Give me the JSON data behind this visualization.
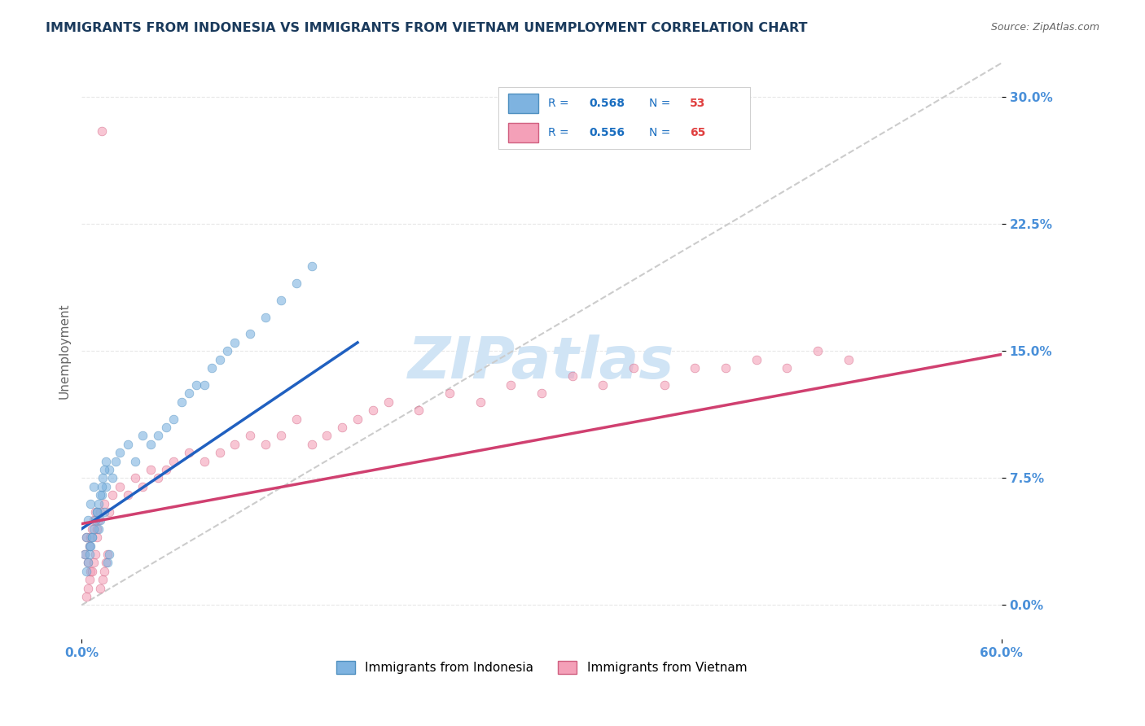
{
  "title": "IMMIGRANTS FROM INDONESIA VS IMMIGRANTS FROM VIETNAM UNEMPLOYMENT CORRELATION CHART",
  "source_text": "Source: ZipAtlas.com",
  "xlabel": "",
  "ylabel": "Unemployment",
  "xlim": [
    0.0,
    0.6
  ],
  "ylim": [
    -0.02,
    0.32
  ],
  "xticks": [
    0.0,
    0.1,
    0.2,
    0.3,
    0.4,
    0.5,
    0.6
  ],
  "xticklabels": [
    "0.0%",
    "",
    "",
    "",
    "",
    "",
    "60.0%"
  ],
  "ytick_positions": [
    0.0,
    0.075,
    0.15,
    0.225,
    0.3
  ],
  "yticklabels": [
    "0.0%",
    "7.5%",
    "15.0%",
    "22.5%",
    "30.0%"
  ],
  "title_color": "#1a3a5c",
  "title_fontsize": 11.5,
  "axis_color": "#4a90d9",
  "watermark_text": "ZIPatlas",
  "watermark_color": "#d0e4f5",
  "watermark_fontsize": 52,
  "legend_labels": [
    "  R = 0.568   N = 53",
    "  R = 0.556   N = 65"
  ],
  "legend_colors_face": [
    "#aec6e8",
    "#f7b6c8"
  ],
  "legend_colors_edge": [
    "#aec6e8",
    "#f7b6c8"
  ],
  "series_indonesia": {
    "x": [
      0.002,
      0.003,
      0.004,
      0.005,
      0.006,
      0.007,
      0.008,
      0.01,
      0.011,
      0.012,
      0.013,
      0.015,
      0.016,
      0.018,
      0.02,
      0.022,
      0.025,
      0.03,
      0.035,
      0.04,
      0.045,
      0.05,
      0.055,
      0.06,
      0.065,
      0.07,
      0.075,
      0.08,
      0.085,
      0.09,
      0.095,
      0.1,
      0.11,
      0.12,
      0.13,
      0.14,
      0.15,
      0.003,
      0.004,
      0.005,
      0.006,
      0.007,
      0.008,
      0.009,
      0.01,
      0.011,
      0.012,
      0.013,
      0.014,
      0.015,
      0.016,
      0.017,
      0.018
    ],
    "y": [
      0.03,
      0.04,
      0.05,
      0.035,
      0.06,
      0.04,
      0.07,
      0.055,
      0.045,
      0.05,
      0.065,
      0.055,
      0.07,
      0.08,
      0.075,
      0.085,
      0.09,
      0.095,
      0.085,
      0.1,
      0.095,
      0.1,
      0.105,
      0.11,
      0.12,
      0.125,
      0.13,
      0.13,
      0.14,
      0.145,
      0.15,
      0.155,
      0.16,
      0.17,
      0.18,
      0.19,
      0.2,
      0.02,
      0.025,
      0.03,
      0.035,
      0.04,
      0.045,
      0.05,
      0.055,
      0.06,
      0.065,
      0.07,
      0.075,
      0.08,
      0.085,
      0.025,
      0.03
    ],
    "color": "#7eb3e0",
    "edge_color": "#5090c0",
    "size": 60,
    "alpha": 0.6
  },
  "series_vietnam": {
    "x": [
      0.002,
      0.003,
      0.004,
      0.005,
      0.006,
      0.007,
      0.008,
      0.009,
      0.01,
      0.012,
      0.015,
      0.018,
      0.02,
      0.025,
      0.03,
      0.035,
      0.04,
      0.045,
      0.05,
      0.055,
      0.06,
      0.07,
      0.08,
      0.09,
      0.1,
      0.11,
      0.12,
      0.13,
      0.14,
      0.15,
      0.16,
      0.17,
      0.18,
      0.19,
      0.2,
      0.22,
      0.24,
      0.26,
      0.28,
      0.3,
      0.32,
      0.34,
      0.36,
      0.38,
      0.4,
      0.42,
      0.44,
      0.46,
      0.48,
      0.5,
      0.003,
      0.004,
      0.005,
      0.006,
      0.007,
      0.008,
      0.009,
      0.01,
      0.011,
      0.012,
      0.013,
      0.014,
      0.015,
      0.016,
      0.017
    ],
    "y": [
      0.03,
      0.04,
      0.025,
      0.035,
      0.04,
      0.045,
      0.05,
      0.055,
      0.045,
      0.055,
      0.06,
      0.055,
      0.065,
      0.07,
      0.065,
      0.075,
      0.07,
      0.08,
      0.075,
      0.08,
      0.085,
      0.09,
      0.085,
      0.09,
      0.095,
      0.1,
      0.095,
      0.1,
      0.11,
      0.095,
      0.1,
      0.105,
      0.11,
      0.115,
      0.12,
      0.115,
      0.125,
      0.12,
      0.13,
      0.125,
      0.135,
      0.13,
      0.14,
      0.13,
      0.14,
      0.14,
      0.145,
      0.14,
      0.15,
      0.145,
      0.005,
      0.01,
      0.015,
      0.02,
      0.02,
      0.025,
      0.03,
      0.04,
      0.05,
      0.01,
      0.28,
      0.015,
      0.02,
      0.025,
      0.03
    ],
    "color": "#f4a0b8",
    "edge_color": "#d06080",
    "size": 60,
    "alpha": 0.6
  },
  "trend_indonesia": {
    "x_start": 0.0,
    "x_end": 0.18,
    "y_start": 0.045,
    "y_end": 0.155,
    "color": "#2060c0",
    "linewidth": 2.5
  },
  "trend_vietnam": {
    "x_start": 0.0,
    "x_end": 0.6,
    "y_start": 0.048,
    "y_end": 0.148,
    "color": "#d04070",
    "linewidth": 2.5
  },
  "diagonal_line": {
    "x_start": 0.0,
    "x_end": 0.6,
    "y_start": 0.0,
    "y_end": 0.32,
    "color": "#cccccc",
    "linewidth": 1.5,
    "linestyle": "--"
  },
  "grid_color": "#dddddd",
  "grid_linestyle": "--",
  "grid_alpha": 0.7,
  "bg_color": "#ffffff",
  "legend_r_color": "#1a6ec0",
  "legend_n_color": "#e04040"
}
